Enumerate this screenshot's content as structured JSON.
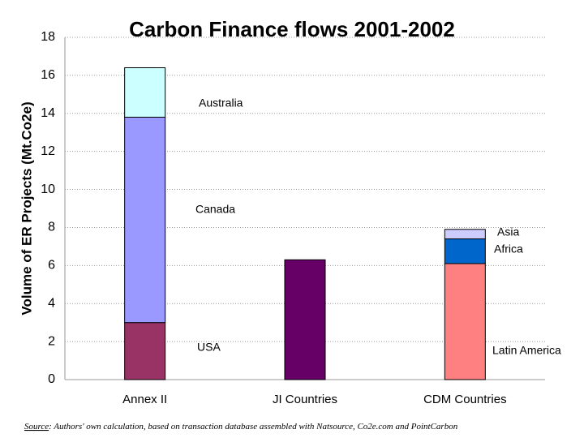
{
  "chart_data": {
    "type": "stacked_bar",
    "title": "Carbon Finance flows 2001-2002",
    "y_label": "Volume of ER Projects (Mt.Co2e)",
    "categories": [
      "Annex II",
      "JI Countries",
      "CDM Countries"
    ],
    "series": [
      {
        "name": "USA",
        "color": "#993366",
        "values": [
          3,
          null,
          null
        ]
      },
      {
        "name": "Canada",
        "color": "#9999ff",
        "values": [
          10.8,
          null,
          null
        ]
      },
      {
        "name": "Australia",
        "color": "#ccffff",
        "values": [
          2.6,
          null,
          null
        ]
      },
      {
        "color": "#660066",
        "values": [
          null,
          6.3,
          null
        ]
      },
      {
        "name": "Latin America",
        "color": "#ff8080",
        "values": [
          null,
          null,
          6.1
        ]
      },
      {
        "name": "Africa",
        "color": "#0066cc",
        "values": [
          null,
          null,
          1.3
        ]
      },
      {
        "name": "Asia",
        "color": "#ccccff",
        "values": [
          null,
          null,
          0.5
        ]
      }
    ],
    "ylim": [
      0,
      18
    ],
    "yticks": [
      0,
      2,
      4,
      6,
      8,
      10,
      12,
      14,
      16,
      18
    ],
    "grid": true,
    "source_label": "Source",
    "source": ": Authors' own calculation, based on transaction database assembled with Natsource, Co2e.com and PointCarbon"
  }
}
